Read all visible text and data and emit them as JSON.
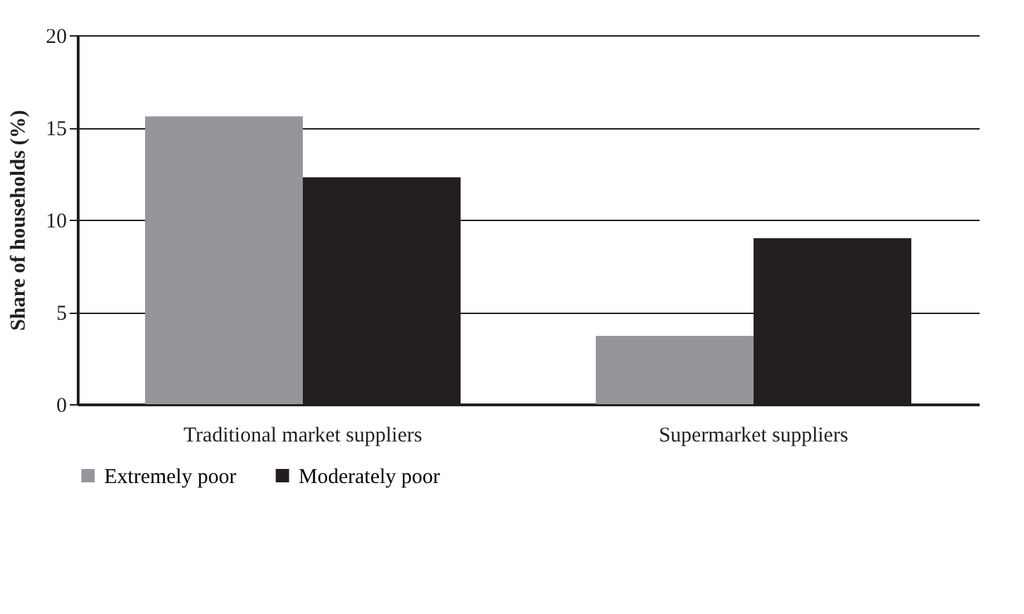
{
  "chart_data": {
    "type": "bar",
    "ylabel": "Share of households (%)",
    "categories": [
      "Traditional market suppliers",
      "Supermarket suppliers"
    ],
    "series": [
      {
        "name": "Extremely poor",
        "color": "#959699",
        "values": [
          15.6,
          3.7
        ]
      },
      {
        "name": "Moderately poor",
        "color": "#231f20",
        "values": [
          12.3,
          9.0
        ]
      }
    ],
    "ylim": [
      0,
      20
    ],
    "yticks": [
      0,
      5,
      10,
      15,
      20
    ],
    "grid": "y",
    "legend": "bottom"
  }
}
